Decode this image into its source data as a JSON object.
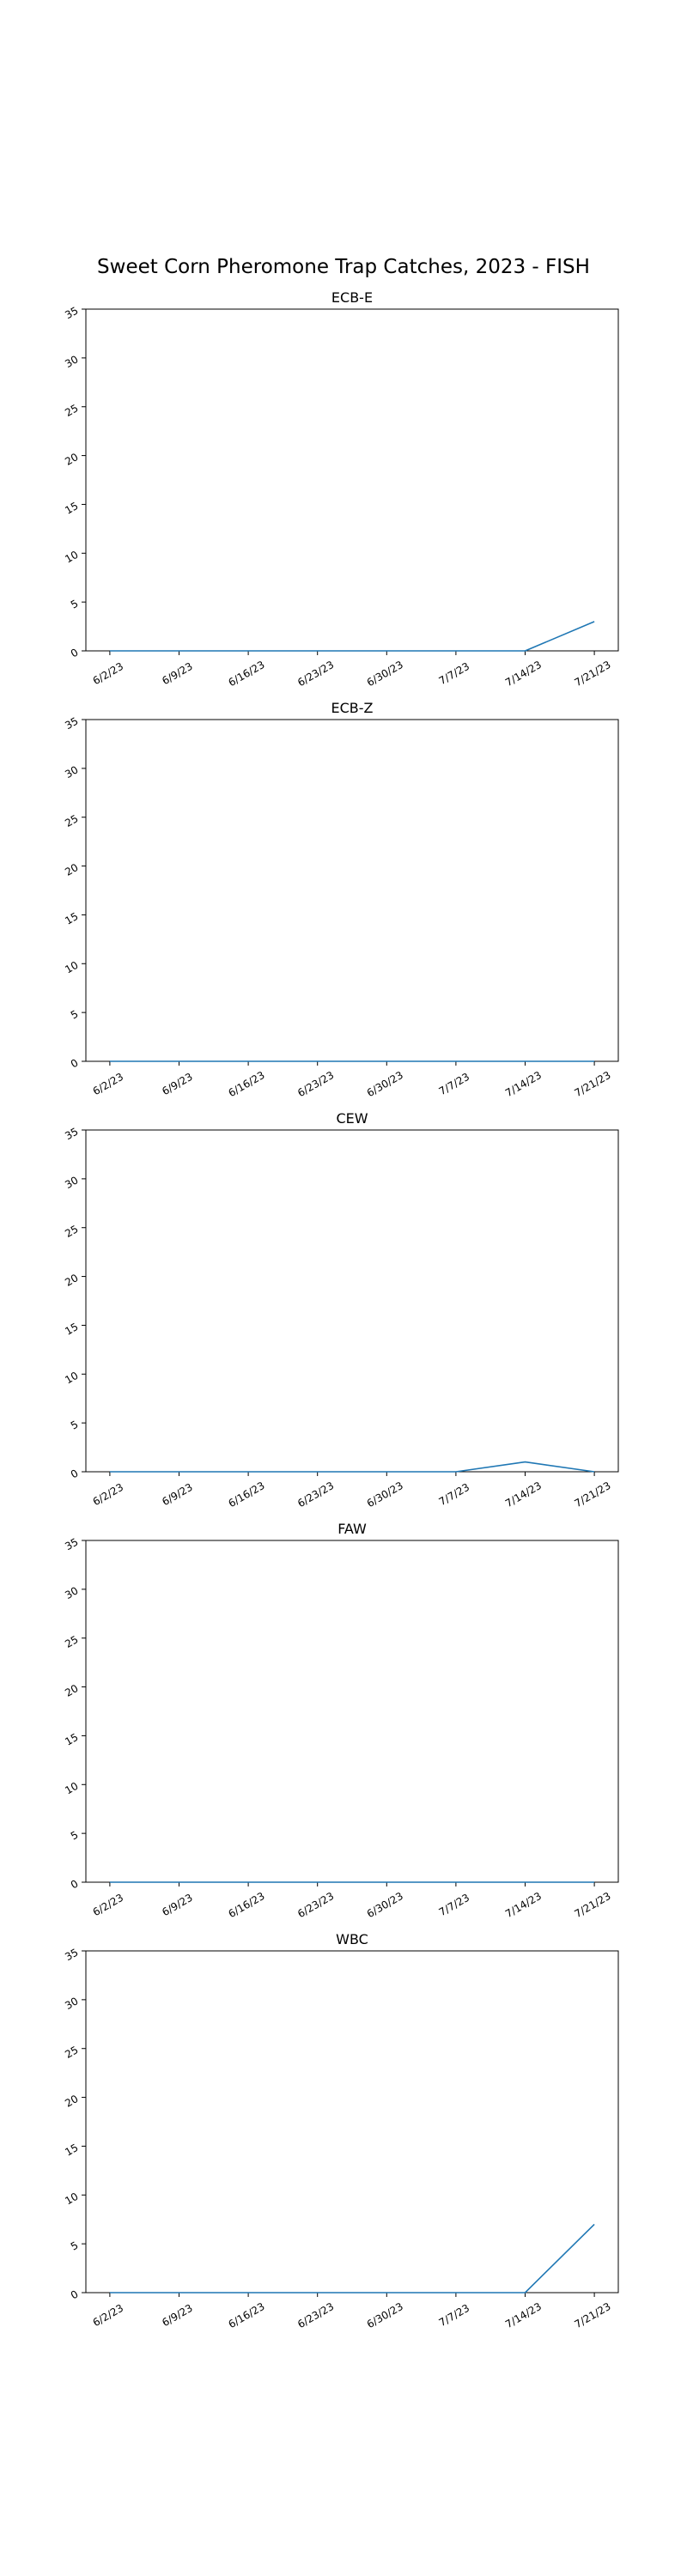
{
  "figure": {
    "title": "Sweet Corn Pheromone Trap Catches, 2023 - FISH"
  },
  "chart_data": [
    {
      "type": "line",
      "title": "ECB-E",
      "categories": [
        "6/2/23",
        "6/9/23",
        "6/16/23",
        "6/23/23",
        "6/30/23",
        "7/7/23",
        "7/14/23",
        "7/21/23"
      ],
      "values": [
        0,
        0,
        0,
        0,
        0,
        0,
        0,
        3
      ],
      "ylim": [
        0,
        35
      ],
      "yticks": [
        0,
        5,
        10,
        15,
        20,
        25,
        30,
        35
      ],
      "color": "#1f77b4",
      "grid": false
    },
    {
      "type": "line",
      "title": "ECB-Z",
      "categories": [
        "6/2/23",
        "6/9/23",
        "6/16/23",
        "6/23/23",
        "6/30/23",
        "7/7/23",
        "7/14/23",
        "7/21/23"
      ],
      "values": [
        0,
        0,
        0,
        0,
        0,
        0,
        0,
        0
      ],
      "ylim": [
        0,
        35
      ],
      "yticks": [
        0,
        5,
        10,
        15,
        20,
        25,
        30,
        35
      ],
      "color": "#1f77b4",
      "grid": false
    },
    {
      "type": "line",
      "title": "CEW",
      "categories": [
        "6/2/23",
        "6/9/23",
        "6/16/23",
        "6/23/23",
        "6/30/23",
        "7/7/23",
        "7/14/23",
        "7/21/23"
      ],
      "values": [
        0,
        0,
        0,
        0,
        0,
        0,
        1,
        0
      ],
      "ylim": [
        0,
        35
      ],
      "yticks": [
        0,
        5,
        10,
        15,
        20,
        25,
        30,
        35
      ],
      "color": "#1f77b4",
      "grid": false
    },
    {
      "type": "line",
      "title": "FAW",
      "categories": [
        "6/2/23",
        "6/9/23",
        "6/16/23",
        "6/23/23",
        "6/30/23",
        "7/7/23",
        "7/14/23",
        "7/21/23"
      ],
      "values": [
        0,
        0,
        0,
        0,
        0,
        0,
        0,
        0
      ],
      "ylim": [
        0,
        35
      ],
      "yticks": [
        0,
        5,
        10,
        15,
        20,
        25,
        30,
        35
      ],
      "color": "#1f77b4",
      "grid": false
    },
    {
      "type": "line",
      "title": "WBC",
      "categories": [
        "6/2/23",
        "6/9/23",
        "6/16/23",
        "6/23/23",
        "6/30/23",
        "7/7/23",
        "7/14/23",
        "7/21/23"
      ],
      "values": [
        0,
        0,
        0,
        0,
        0,
        0,
        0,
        7
      ],
      "ylim": [
        0,
        35
      ],
      "yticks": [
        0,
        5,
        10,
        15,
        20,
        25,
        30,
        35
      ],
      "color": "#1f77b4",
      "grid": false
    }
  ]
}
